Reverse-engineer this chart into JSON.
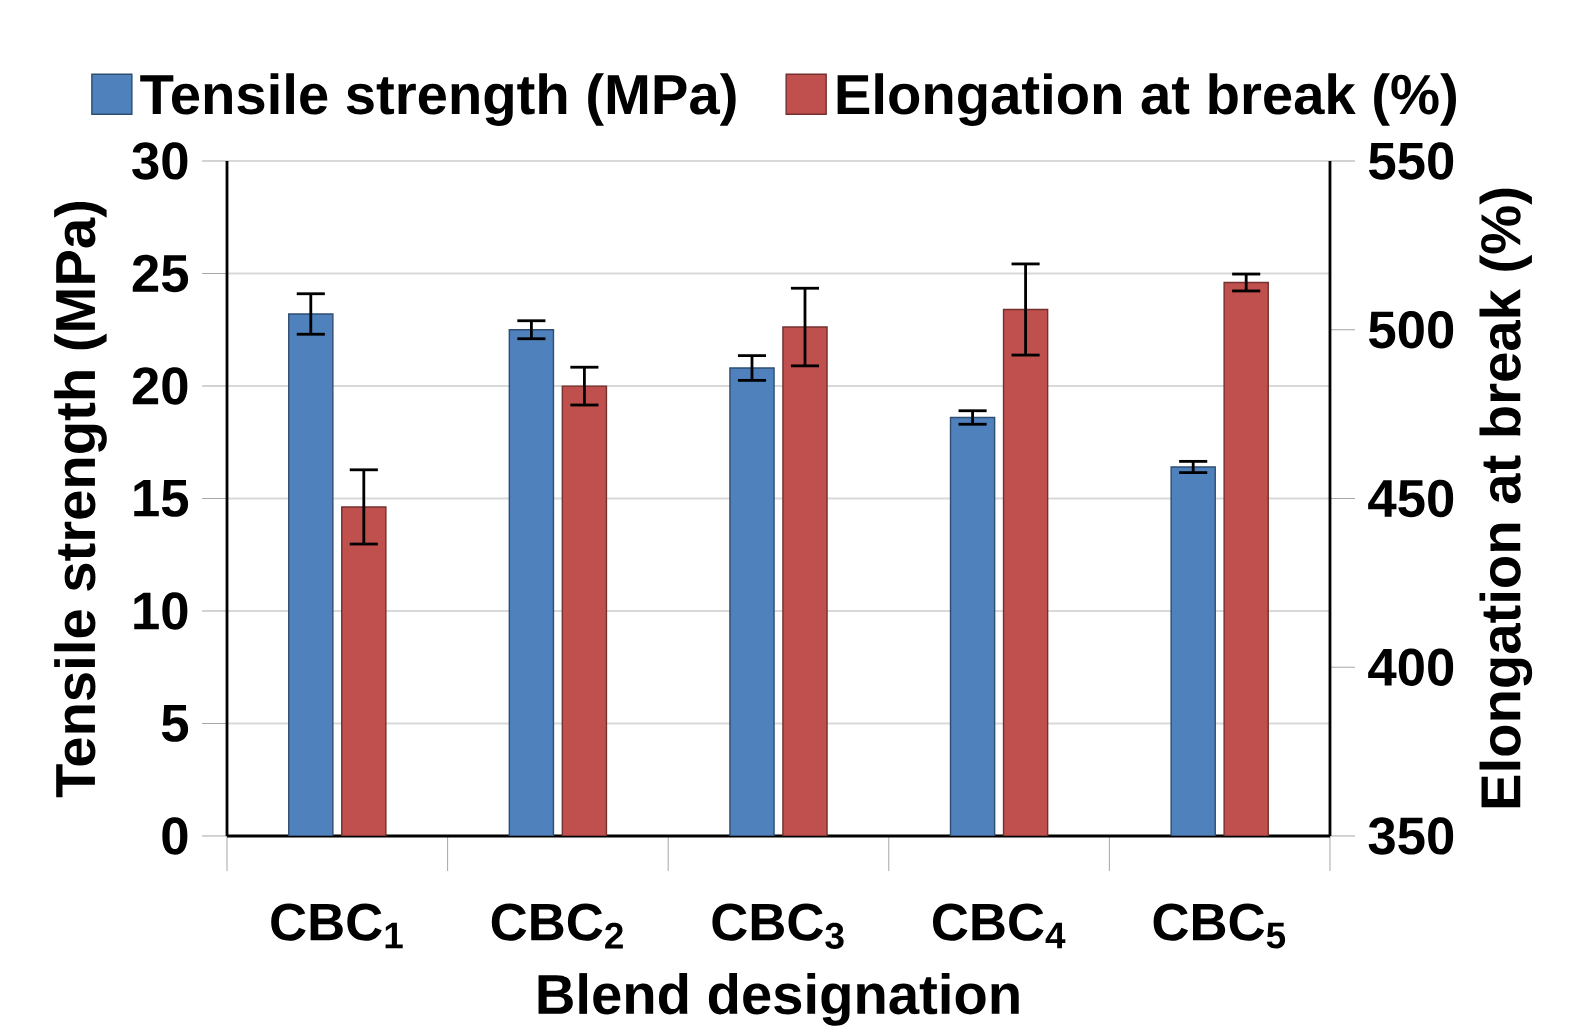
{
  "chart_data": {
    "type": "bar",
    "xlabel": "Blend designation",
    "ylabel": "Tensile strength (MPa)",
    "y2label": "Elongation at break (%)",
    "categories": [
      "CBC$_{1}$",
      "CBC$_{2}$",
      "CBC$_{3}$",
      "CBC$_{4}$",
      "CBC$_{5}$"
    ],
    "series": [
      {
        "name": "Tensile strength (MPa)",
        "color": "#4f81bd",
        "values": [
          23.2,
          22.5,
          20.8,
          18.6,
          16.4
        ],
        "errors": [
          0.9,
          0.4,
          0.55,
          0.3,
          0.25
        ]
      },
      {
        "name": "Elongation at break (%)",
        "color": "#c0504d",
        "axis": "y2",
        "values": [
          447.5,
          483.3,
          500.8,
          506,
          514
        ],
        "errors": [
          11,
          5.6,
          11.5,
          13.5,
          2.5
        ]
      }
    ],
    "ylim": [
      0,
      30
    ],
    "yticks": [
      0,
      5,
      10,
      15,
      20,
      25,
      30
    ],
    "y2lim": [
      350,
      550
    ],
    "y2ticks": [
      350,
      400,
      450,
      500,
      550
    ],
    "grid": "y",
    "legend": "top"
  }
}
